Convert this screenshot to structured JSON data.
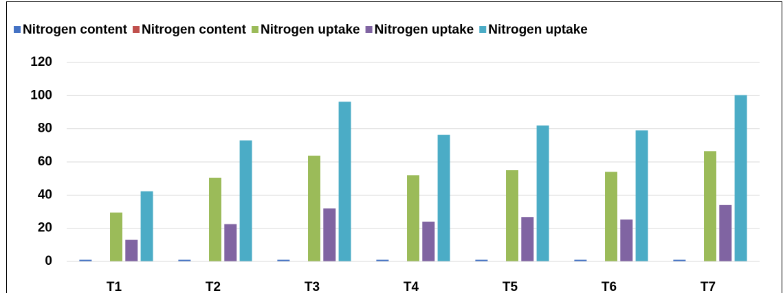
{
  "chart_data": {
    "type": "bar",
    "categories": [
      "T1",
      "T2",
      "T3",
      "T4",
      "T5",
      "T6",
      "T7"
    ],
    "series": [
      {
        "name": "Nitrogen content",
        "color": "#4472c4",
        "values": [
          1,
          1,
          1,
          1,
          1,
          1,
          1
        ]
      },
      {
        "name": "Nitrogen content",
        "color": "#c0504d",
        "values": [
          0,
          0,
          0,
          0,
          0,
          0,
          0
        ]
      },
      {
        "name": "Nitrogen uptake",
        "color": "#9bbb59",
        "values": [
          29.5,
          50.5,
          63.8,
          52,
          55,
          54,
          66.5
        ]
      },
      {
        "name": "Nitrogen uptake",
        "color": "#8064a2",
        "values": [
          13,
          22.5,
          32,
          24,
          26.8,
          25.3,
          34
        ]
      },
      {
        "name": "Nitrogen uptake",
        "color": "#4bacc6",
        "values": [
          42.3,
          73,
          96.3,
          76.3,
          82,
          79,
          100.3
        ]
      }
    ],
    "ylim": [
      0,
      120
    ],
    "yticks": [
      0,
      20,
      40,
      60,
      80,
      100,
      120
    ],
    "grid": true,
    "legend": "top"
  }
}
